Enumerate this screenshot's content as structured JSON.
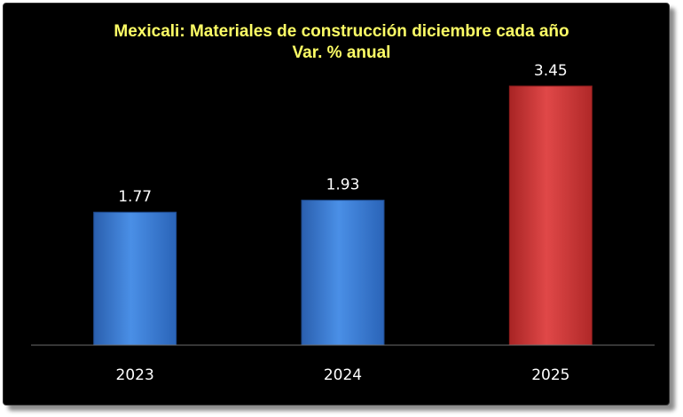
{
  "chart_data": {
    "type": "bar",
    "title": "Mexicali: Materiales de construcción diciembre cada año",
    "subtitle": "Var. % anual",
    "categories": [
      "2023",
      "2024",
      "2025"
    ],
    "values": [
      1.77,
      1.93,
      3.45
    ],
    "value_labels": [
      "1.77",
      "1.93",
      "3.45"
    ],
    "bar_colors": [
      "#3b7dd8",
      "#3b7dd8",
      "#d93a3a"
    ],
    "ylim": [
      0,
      3.45
    ],
    "grid": false,
    "legend": "none",
    "background": "#000000",
    "title_color": "#ffff66"
  }
}
